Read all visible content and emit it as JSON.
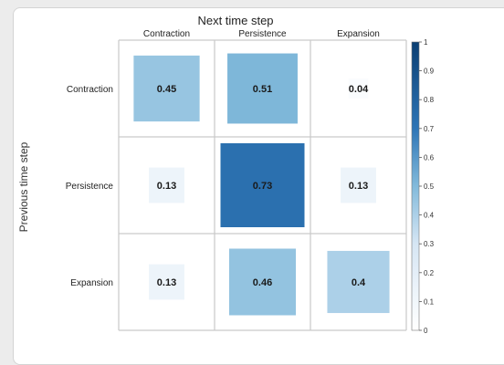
{
  "chart_data": {
    "type": "heatmap",
    "title": "Next time step",
    "xlabel": "Next time step",
    "ylabel": "Previous time step",
    "x_categories": [
      "Contraction",
      "Persistence",
      "Expansion"
    ],
    "y_categories": [
      "Contraction",
      "Persistence",
      "Expansion"
    ],
    "values": [
      [
        0.45,
        0.51,
        0.04
      ],
      [
        0.13,
        0.73,
        0.13
      ],
      [
        0.13,
        0.46,
        0.4
      ]
    ],
    "value_labels": [
      [
        "0.45",
        "0.51",
        "0.04"
      ],
      [
        "0.13",
        "0.73",
        "0.13"
      ],
      [
        "0.13",
        "0.46",
        "0.4"
      ]
    ],
    "colorbar": {
      "range": [
        0,
        1
      ],
      "ticks": [
        "0",
        "0.1",
        "0.2",
        "0.3",
        "0.4",
        "0.5",
        "0.6",
        "0.7",
        "0.8",
        "0.9",
        "1"
      ],
      "low_color": "#ffffff",
      "high_color": "#0b3f73"
    },
    "square_size_encodes_value": true,
    "grid": true
  }
}
